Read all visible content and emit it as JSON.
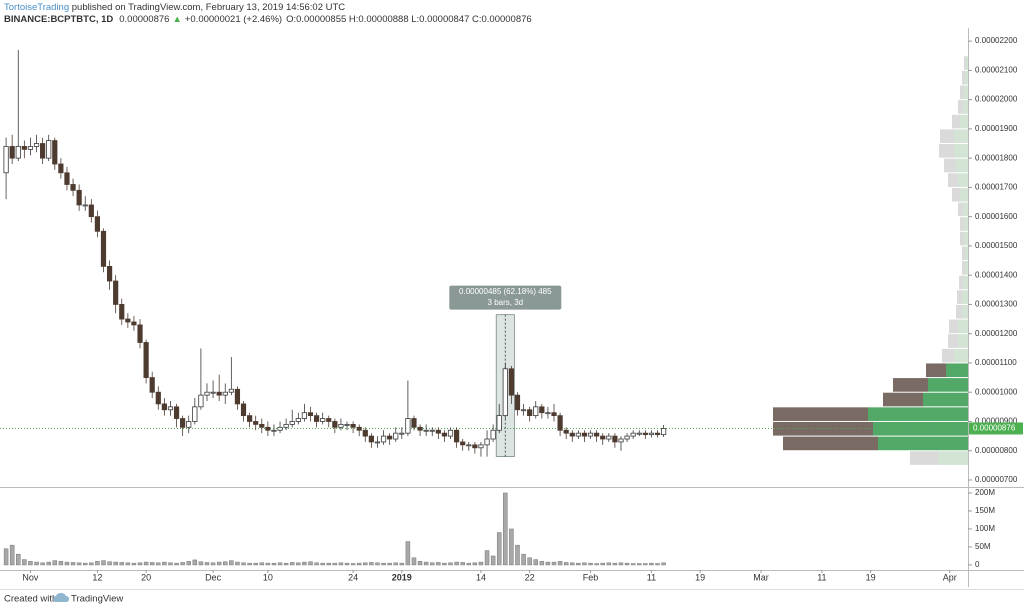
{
  "header": {
    "author": "TortoiseTrading",
    "published": " published on TradingView.com, February 13, 2019 14:56:02 UTC",
    "symbol": "BINANCE:BCPTBTC, 1D",
    "last": "0.00000876",
    "arrow": "▲",
    "change": "+0.00000021 (+2.46%)",
    "ohlc": "O:0.00000855 H:0.00000888 L:0.00000847 C:0.00000876"
  },
  "chart_data": {
    "type": "candlestick",
    "x": [
      "2018-10-28",
      "2018-10-29",
      "2018-10-30",
      "2018-10-31",
      "2018-11-01",
      "2018-11-02",
      "2018-11-03",
      "2018-11-04",
      "2018-11-05",
      "2018-11-06",
      "2018-11-07",
      "2018-11-08",
      "2018-11-09",
      "2018-11-10",
      "2018-11-11",
      "2018-11-12",
      "2018-11-13",
      "2018-11-14",
      "2018-11-15",
      "2018-11-16",
      "2018-11-17",
      "2018-11-18",
      "2018-11-19",
      "2018-11-20",
      "2018-11-21",
      "2018-11-22",
      "2018-11-23",
      "2018-11-24",
      "2018-11-25",
      "2018-11-26",
      "2018-11-27",
      "2018-11-28",
      "2018-11-29",
      "2018-11-30",
      "2018-12-01",
      "2018-12-02",
      "2018-12-03",
      "2018-12-04",
      "2018-12-05",
      "2018-12-06",
      "2018-12-07",
      "2018-12-08",
      "2018-12-09",
      "2018-12-10",
      "2018-12-11",
      "2018-12-12",
      "2018-12-13",
      "2018-12-14",
      "2018-12-15",
      "2018-12-16",
      "2018-12-17",
      "2018-12-18",
      "2018-12-19",
      "2018-12-20",
      "2018-12-21",
      "2018-12-22",
      "2018-12-23",
      "2018-12-24",
      "2018-12-25",
      "2018-12-26",
      "2018-12-27",
      "2018-12-28",
      "2018-12-29",
      "2018-12-30",
      "2018-12-31",
      "2019-01-01",
      "2019-01-02",
      "2019-01-03",
      "2019-01-04",
      "2019-01-05",
      "2019-01-06",
      "2019-01-07",
      "2019-01-08",
      "2019-01-09",
      "2019-01-10",
      "2019-01-11",
      "2019-01-12",
      "2019-01-13",
      "2019-01-14",
      "2019-01-15",
      "2019-01-16",
      "2019-01-17",
      "2019-01-18",
      "2019-01-19",
      "2019-01-20",
      "2019-01-21",
      "2019-01-22",
      "2019-01-23",
      "2019-01-24",
      "2019-01-25",
      "2019-01-26",
      "2019-01-27",
      "2019-01-28",
      "2019-01-29",
      "2019-01-30",
      "2019-01-31",
      "2019-02-01",
      "2019-02-02",
      "2019-02-03",
      "2019-02-04",
      "2019-02-05",
      "2019-02-06",
      "2019-02-07",
      "2019-02-08",
      "2019-02-09",
      "2019-02-10",
      "2019-02-11",
      "2019-02-12",
      "2019-02-13"
    ],
    "open": [
      1.75e-05,
      1.84e-05,
      1.8e-05,
      1.84e-05,
      1.83e-05,
      1.84e-05,
      1.85e-05,
      1.8e-05,
      1.86e-05,
      1.78e-05,
      1.75e-05,
      1.71e-05,
      1.69e-05,
      1.64e-05,
      1.64e-05,
      1.6e-05,
      1.55e-05,
      1.43e-05,
      1.38e-05,
      1.3e-05,
      1.25e-05,
      1.24e-05,
      1.23e-05,
      1.17e-05,
      1.05e-05,
      1e-05,
      9.6e-06,
      9.4e-06,
      9.5e-06,
      9.1e-06,
      8.8e-06,
      9e-06,
      9.5e-06,
      9.9e-06,
      1e-05,
      1e-05,
      9.9e-06,
      1e-05,
      1.01e-05,
      9.6e-06,
      9.2e-06,
      9e-06,
      8.9e-06,
      8.8e-06,
      8.7e-06,
      8.7e-06,
      8.8e-06,
      8.9e-06,
      9e-06,
      9.1e-06,
      9.3e-06,
      9.2e-06,
      9e-06,
      9.1e-06,
      9e-06,
      8.8e-06,
      8.9e-06,
      8.9e-06,
      8.8e-06,
      8.7e-06,
      8.5e-06,
      8.3e-06,
      8.3e-06,
      8.5e-06,
      8.4e-06,
      8.6e-06,
      8.6e-06,
      9.1e-06,
      8.8e-06,
      8.7e-06,
      8.7e-06,
      8.7e-06,
      8.6e-06,
      8.5e-06,
      8.7e-06,
      8.3e-06,
      8.2e-06,
      8.2e-06,
      8.1e-06,
      8.2e-06,
      8.4e-06,
      8.7e-06,
      9.2e-06,
      1.08e-05,
      9.9e-06,
      9.4e-06,
      9.4e-06,
      9.2e-06,
      9.5e-06,
      9.3e-06,
      9.3e-06,
      9.2e-06,
      8.7e-06,
      8.6e-06,
      8.5e-06,
      8.6e-06,
      8.5e-06,
      8.6e-06,
      8.5e-06,
      8.4e-06,
      8.5e-06,
      8.3e-06,
      8.4e-06,
      8.5e-06,
      8.6e-06,
      8.6e-06,
      8.55e-06,
      8.6e-06,
      8.55e-06
    ],
    "high": [
      1.87e-05,
      1.88e-05,
      2.17e-05,
      1.86e-05,
      1.87e-05,
      1.88e-05,
      1.87e-05,
      1.88e-05,
      1.87e-05,
      1.8e-05,
      1.77e-05,
      1.73e-05,
      1.71e-05,
      1.67e-05,
      1.66e-05,
      1.62e-05,
      1.56e-05,
      1.45e-05,
      1.4e-05,
      1.32e-05,
      1.27e-05,
      1.26e-05,
      1.25e-05,
      1.18e-05,
      1.07e-05,
      1.02e-05,
      9.8e-06,
      9.7e-06,
      9.6e-06,
      9.2e-06,
      9.2e-06,
      9.8e-06,
      1.15e-05,
      1.03e-05,
      1.04e-05,
      1.06e-05,
      1.03e-05,
      1.12e-05,
      1.02e-05,
      9.7e-06,
      9.3e-06,
      9.2e-06,
      9.1e-06,
      9e-06,
      8.9e-06,
      9e-06,
      9.1e-06,
      9.4e-06,
      9.3e-06,
      9.6e-06,
      9.5e-06,
      9.3e-06,
      9.3e-06,
      9.2e-06,
      9.1e-06,
      9.1e-06,
      9e-06,
      9e-06,
      8.9e-06,
      8.8e-06,
      8.6e-06,
      8.5e-06,
      8.7e-06,
      8.6e-06,
      8.8e-06,
      8.8e-06,
      1.04e-05,
      9.2e-06,
      8.9e-06,
      8.9e-06,
      8.8e-06,
      8.8e-06,
      8.7e-06,
      8.8e-06,
      8.8e-06,
      8.4e-06,
      8.3e-06,
      8.3e-06,
      8.3e-06,
      8.7e-06,
      8.9e-06,
      9.6e-06,
      1.1e-05,
      1.09e-05,
      1e-05,
      9.6e-06,
      9.5e-06,
      9.7e-06,
      9.6e-06,
      9.5e-06,
      9.6e-06,
      9.3e-06,
      8.8e-06,
      8.7e-06,
      8.7e-06,
      8.7e-06,
      8.7e-06,
      8.7e-06,
      8.6e-06,
      8.6e-06,
      8.6e-06,
      8.5e-06,
      8.6e-06,
      8.7e-06,
      8.7e-06,
      8.7e-06,
      8.7e-06,
      8.7e-06,
      8.88e-06
    ],
    "low": [
      1.66e-05,
      1.78e-05,
      1.79e-05,
      1.8e-05,
      1.81e-05,
      1.82e-05,
      1.78e-05,
      1.79e-05,
      1.76e-05,
      1.73e-05,
      1.69e-05,
      1.67e-05,
      1.62e-05,
      1.62e-05,
      1.58e-05,
      1.53e-05,
      1.41e-05,
      1.35e-05,
      1.27e-05,
      1.23e-05,
      1.22e-05,
      1.21e-05,
      1.15e-05,
      1.03e-05,
      9.8e-06,
      9.4e-06,
      9.2e-06,
      9.2e-06,
      8.8e-06,
      8.5e-06,
      8.6e-06,
      8.9e-06,
      9.4e-06,
      9.7e-06,
      9.8e-06,
      9.7e-06,
      9.6e-06,
      9.9e-06,
      9.4e-06,
      9e-06,
      8.8e-06,
      8.7e-06,
      8.6e-06,
      8.5e-06,
      8.5e-06,
      8.6e-06,
      8.7e-06,
      8.8e-06,
      8.9e-06,
      9e-06,
      9e-06,
      8.8e-06,
      8.9e-06,
      8.8e-06,
      8.6e-06,
      8.7e-06,
      8.7e-06,
      8.6e-06,
      8.5e-06,
      8.3e-06,
      8.1e-06,
      8.1e-06,
      8.2e-06,
      8.2e-06,
      8.3e-06,
      8.4e-06,
      8.5e-06,
      8.7e-06,
      8.5e-06,
      8.5e-06,
      8.5e-06,
      8.4e-06,
      8.3e-06,
      8.4e-06,
      8.1e-06,
      8e-06,
      8e-06,
      7.9e-06,
      7.8e-06,
      7.8e-06,
      8.3e-06,
      8.6e-06,
      9.1e-06,
      9.6e-06,
      9.2e-06,
      9.2e-06,
      9e-06,
      9.1e-06,
      9.1e-06,
      9.1e-06,
      9e-06,
      8.5e-06,
      8.4e-06,
      8.3e-06,
      8.4e-06,
      8.3e-06,
      8.4e-06,
      8.3e-06,
      8.2e-06,
      8.3e-06,
      8.1e-06,
      8e-06,
      8.3e-06,
      8.4e-06,
      8.5e-06,
      8.4e-06,
      8.45e-06,
      8.45e-06,
      8.47e-06
    ],
    "close": [
      1.84e-05,
      1.8e-05,
      1.84e-05,
      1.83e-05,
      1.84e-05,
      1.85e-05,
      1.8e-05,
      1.86e-05,
      1.78e-05,
      1.75e-05,
      1.71e-05,
      1.69e-05,
      1.64e-05,
      1.64e-05,
      1.6e-05,
      1.55e-05,
      1.43e-05,
      1.38e-05,
      1.3e-05,
      1.25e-05,
      1.24e-05,
      1.23e-05,
      1.17e-05,
      1.05e-05,
      1e-05,
      9.6e-06,
      9.4e-06,
      9.5e-06,
      9.1e-06,
      8.8e-06,
      9e-06,
      9.5e-06,
      9.9e-06,
      1e-05,
      1e-05,
      9.9e-06,
      1e-05,
      1.01e-05,
      9.6e-06,
      9.2e-06,
      9e-06,
      8.9e-06,
      8.8e-06,
      8.7e-06,
      8.7e-06,
      8.8e-06,
      8.9e-06,
      9e-06,
      9.1e-06,
      9.3e-06,
      9.2e-06,
      9e-06,
      9.1e-06,
      9e-06,
      8.8e-06,
      8.9e-06,
      8.9e-06,
      8.8e-06,
      8.7e-06,
      8.5e-06,
      8.3e-06,
      8.3e-06,
      8.5e-06,
      8.4e-06,
      8.6e-06,
      8.6e-06,
      9.1e-06,
      8.8e-06,
      8.7e-06,
      8.7e-06,
      8.7e-06,
      8.6e-06,
      8.5e-06,
      8.7e-06,
      8.3e-06,
      8.2e-06,
      8.2e-06,
      8.1e-06,
      8.2e-06,
      8.4e-06,
      8.7e-06,
      9.2e-06,
      1.08e-05,
      9.9e-06,
      9.4e-06,
      9.4e-06,
      9.2e-06,
      9.5e-06,
      9.3e-06,
      9.3e-06,
      9.2e-06,
      8.7e-06,
      8.6e-06,
      8.5e-06,
      8.6e-06,
      8.5e-06,
      8.6e-06,
      8.5e-06,
      8.4e-06,
      8.5e-06,
      8.3e-06,
      8.4e-06,
      8.5e-06,
      8.6e-06,
      8.6e-06,
      8.55e-06,
      8.6e-06,
      8.55e-06,
      8.76e-06
    ],
    "volume": [
      45000000.0,
      55000000.0,
      30000000.0,
      15000000.0,
      10000000.0,
      8000000.0,
      6000000.0,
      8000000.0,
      12000000.0,
      10000000.0,
      8000000.0,
      7000000.0,
      6000000.0,
      5000000.0,
      6000000.0,
      10000000.0,
      12000000.0,
      9000000.0,
      8000000.0,
      7000000.0,
      6000000.0,
      5000000.0,
      6000000.0,
      8000000.0,
      7000000.0,
      6000000.0,
      8000000.0,
      6000000.0,
      5000000.0,
      7000000.0,
      10000000.0,
      14000000.0,
      9000000.0,
      7000000.0,
      6000000.0,
      8000000.0,
      9000000.0,
      12000000.0,
      8000000.0,
      6000000.0,
      5000000.0,
      5000000.0,
      6000000.0,
      5000000.0,
      5000000.0,
      6000000.0,
      5000000.0,
      7000000.0,
      6000000.0,
      8000000.0,
      9000000.0,
      6000000.0,
      5000000.0,
      5000000.0,
      5000000.0,
      6000000.0,
      5000000.0,
      4000000.0,
      5000000.0,
      6000000.0,
      7000000.0,
      6000000.0,
      5000000.0,
      5000000.0,
      6000000.0,
      5000000.0,
      65000000.0,
      20000000.0,
      10000000.0,
      8000000.0,
      6000000.0,
      7000000.0,
      5000000.0,
      6000000.0,
      8000000.0,
      7000000.0,
      5000000.0,
      6000000.0,
      8000000.0,
      40000000.0,
      25000000.0,
      90000000.0,
      200000000.0,
      100000000.0,
      55000000.0,
      30000000.0,
      20000000.0,
      15000000.0,
      10000000.0,
      8000000.0,
      8000000.0,
      10000000.0,
      7000000.0,
      6000000.0,
      5000000.0,
      6000000.0,
      5000000.0,
      4000000.0,
      5000000.0,
      6000000.0,
      5000000.0,
      6000000.0,
      5000000.0,
      4000000.0,
      4000000.0,
      4000000.0,
      5000000.0,
      4000000.0,
      6000000.0
    ],
    "up_color": "#ffffff",
    "down_color": "#4e3b30",
    "volume_color": "#a8a8a8",
    "xlim": [
      "2018-10-27",
      "2019-04-04"
    ],
    "xticks": [
      {
        "value": "2018-11-01",
        "label": "Nov"
      },
      {
        "value": "2018-11-12",
        "label": "12"
      },
      {
        "value": "2018-11-20",
        "label": "20"
      },
      {
        "value": "2018-12-01",
        "label": "Dec"
      },
      {
        "value": "2018-12-10",
        "label": "10"
      },
      {
        "value": "2018-12-24",
        "label": "24"
      },
      {
        "value": "2019-01-01",
        "label": "2019"
      },
      {
        "value": "2019-01-14",
        "label": "14"
      },
      {
        "value": "2019-01-22",
        "label": "22"
      },
      {
        "value": "2019-02-01",
        "label": "Feb"
      },
      {
        "value": "2019-02-11",
        "label": "11"
      },
      {
        "value": "2019-02-19",
        "label": "19"
      },
      {
        "value": "2019-03-01",
        "label": "Mar"
      },
      {
        "value": "2019-03-11",
        "label": "11"
      },
      {
        "value": "2019-03-19",
        "label": "19"
      },
      {
        "value": "2019-04-01",
        "label": "Apr"
      }
    ],
    "ylim": [
      6.76e-06,
      2.238e-05
    ],
    "yticks": [
      {
        "value": 7e-06,
        "label": "0.00000700"
      },
      {
        "value": 8e-06,
        "label": "0.00000800"
      },
      {
        "value": 9e-06,
        "label": "0.00000900"
      },
      {
        "value": 1e-05,
        "label": "0.00001000"
      },
      {
        "value": 1.1e-05,
        "label": "0.00001100"
      },
      {
        "value": 1.2e-05,
        "label": "0.00001200"
      },
      {
        "value": 1.3e-05,
        "label": "0.00001300"
      },
      {
        "value": 1.4e-05,
        "label": "0.00001400"
      },
      {
        "value": 1.5e-05,
        "label": "0.00001500"
      },
      {
        "value": 1.6e-05,
        "label": "0.00001600"
      },
      {
        "value": 1.7e-05,
        "label": "0.00001700"
      },
      {
        "value": 1.8e-05,
        "label": "0.00001800"
      },
      {
        "value": 1.9e-05,
        "label": "0.00001900"
      },
      {
        "value": 2e-05,
        "label": "0.00002000"
      },
      {
        "value": 2.1e-05,
        "label": "0.00002100"
      },
      {
        "value": 2.2e-05,
        "label": "0.00002200"
      }
    ],
    "volume_ylim": [
      -14000000.0,
      211000000.0
    ],
    "volume_yticks": [
      0,
      {
        "value": 50000000.0,
        "label": "50M"
      },
      {
        "value": 100000000.0,
        "label": "100M"
      },
      {
        "value": 150000000.0,
        "label": "150M"
      },
      {
        "value": 200000000.0,
        "label": "200M"
      }
    ],
    "last_price": {
      "value": 8.76e-06,
      "label": "0.00000876",
      "color": "#4caf50"
    },
    "measure": {
      "x": [
        "2019-01-17",
        "2019-01-19"
      ],
      "y": [
        7.8e-06,
        1.265e-05
      ],
      "labels": [
        "0.00000485 (62.18%) 485",
        "3 bars, 3d"
      ]
    },
    "volume_profile": {
      "bins": [
        7.5e-06,
        8e-06,
        8.5e-06,
        9e-06,
        9.5e-06,
        1e-05,
        1.05e-05,
        1.1e-05,
        1.15e-05,
        1.2e-05,
        1.25e-05,
        1.3e-05,
        1.35e-05,
        1.4e-05,
        1.45e-05,
        1.5e-05,
        1.55e-05,
        1.6e-05,
        1.65e-05,
        1.7e-05,
        1.75e-05,
        1.8e-05,
        1.85e-05,
        1.9e-05,
        1.95e-05,
        2e-05,
        2.05e-05,
        2.1e-05,
        2.15e-05
      ],
      "up": [
        30,
        90,
        95,
        100,
        45,
        40,
        22,
        14,
        10,
        10,
        6,
        6,
        5,
        3,
        3,
        4,
        4,
        5,
        8,
        10,
        12,
        14,
        14,
        8,
        5,
        4,
        3,
        2
      ],
      "down": [
        28,
        95,
        100,
        95,
        40,
        35,
        20,
        12,
        10,
        9,
        6,
        5,
        4,
        3,
        3,
        4,
        4,
        5,
        8,
        10,
        12,
        15,
        14,
        8,
        5,
        4,
        3,
        2
      ],
      "value_area": [
        8e-06,
        1.1e-05
      ],
      "colors": {
        "up": "#52a866",
        "down": "#7a6a64",
        "up_faded": "#d3e4d5",
        "down_faded": "#dadada"
      }
    }
  },
  "footer": {
    "created": "Created with",
    "brand": "TradingView"
  }
}
